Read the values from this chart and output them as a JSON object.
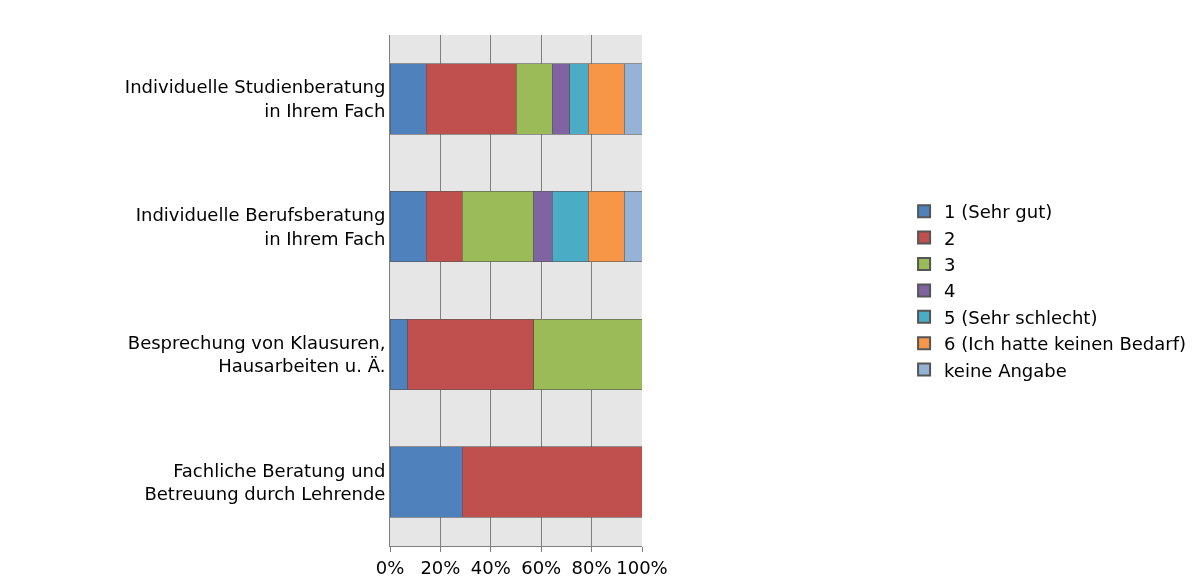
{
  "chart_data": {
    "type": "bar",
    "orientation": "horizontal",
    "stacked": true,
    "categories": [
      "Individuelle Studienberatung in Ihrem Fach",
      "Individuelle Berufsberatung in Ihrem Fach",
      "Besprechung von Klausuren, Hausarbeiten u. Ä.",
      "Fachliche Beratung und Betreuung durch Lehrende"
    ],
    "series": [
      {
        "name": "1 (Sehr gut)",
        "color": "#4f81bd",
        "values": [
          14.3,
          14.3,
          7.1,
          28.6
        ]
      },
      {
        "name": "2",
        "color": "#c0504d",
        "values": [
          35.7,
          14.3,
          50,
          71.4
        ]
      },
      {
        "name": "3",
        "color": "#9bbb59",
        "values": [
          14.3,
          28.5,
          42.9,
          null
        ]
      },
      {
        "name": "4",
        "color": "#8064a2",
        "values": [
          7.1,
          7.2,
          null,
          null
        ]
      },
      {
        "name": "5 (Sehr schlecht)",
        "color": "#4bacc6",
        "values": [
          7.2,
          14.3,
          null,
          null
        ]
      },
      {
        "name": "6 (Ich hatte keinen Bedarf)",
        "color": "#f79646",
        "values": [
          14.3,
          14.3,
          null,
          null
        ]
      },
      {
        "name": "keine Angabe",
        "color": "#95b3d7",
        "values": [
          7.1,
          7.1,
          null,
          null
        ]
      }
    ],
    "xlim": [
      0,
      100
    ],
    "xticks": [
      {
        "value": 0,
        "label": "0%"
      },
      {
        "value": 20,
        "label": "20%"
      },
      {
        "value": 40,
        "label": "40%"
      },
      {
        "value": 60,
        "label": "60%"
      },
      {
        "value": 80,
        "label": "80%"
      },
      {
        "value": 100,
        "label": "100%"
      }
    ],
    "grid": "x",
    "legend": "right"
  }
}
